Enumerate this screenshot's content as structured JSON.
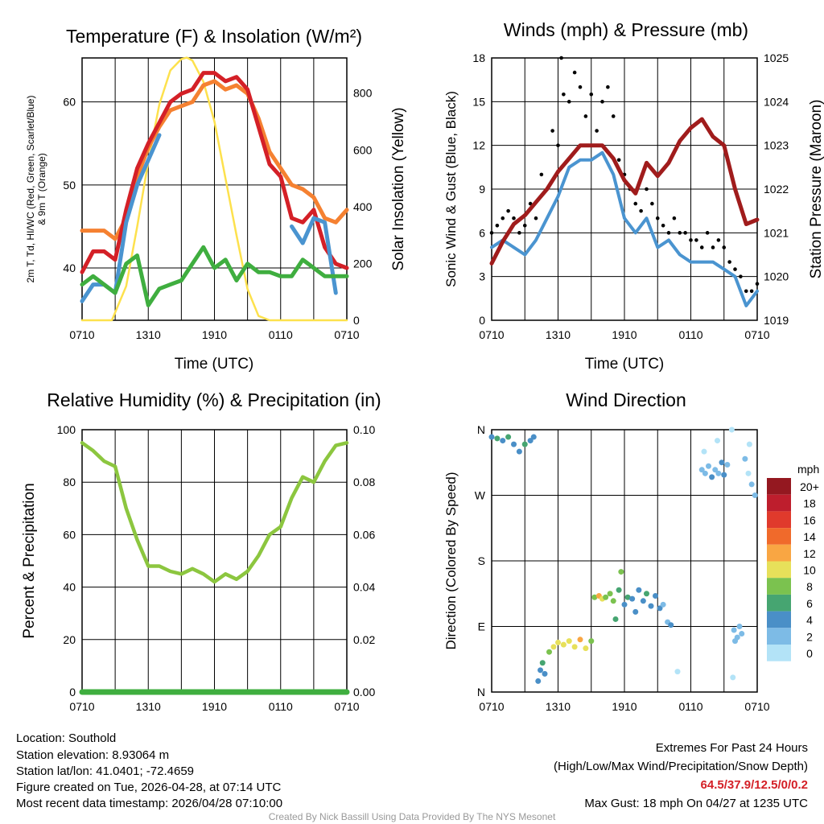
{
  "colors": {
    "red": "#d42027",
    "orange": "#f58131",
    "blue": "#4a94d0",
    "green": "#3fae3f",
    "yellow": "#fde14d",
    "maroon": "#a01c1c",
    "rh": "#8cc63f",
    "precip": "#3fae3f"
  },
  "x_tick_labels": [
    "0710",
    "1310",
    "1910",
    "0110",
    "0710"
  ],
  "chart_data": [
    {
      "type": "line",
      "title": "Temperature (F) & Insolation (W/m²)",
      "xlabel": "Time (UTC)",
      "ylabel_line1": "2m T, Td, HI/WC (Red, Green, Scarlet/Blue)",
      "ylabel_line2": "& 9m T (Orange)",
      "ylabel_right": "Solar Insolation (Yellow)",
      "xlim_hours": [
        0,
        24
      ],
      "ylim": [
        33.7,
        65.3
      ],
      "ylim_right": [
        0,
        924
      ],
      "yticks": [
        40,
        50,
        60
      ],
      "yticks_right": [
        0,
        200,
        400,
        600,
        800
      ],
      "series": [
        {
          "name": "9m T",
          "color": "orange",
          "values": [
            44.5,
            44.5,
            44.5,
            43.5,
            46,
            51,
            54.5,
            57,
            59,
            59.5,
            60,
            62,
            62.5,
            61.5,
            62,
            61,
            58,
            54,
            52,
            50,
            49.5,
            48.5,
            46,
            45.5,
            47
          ]
        },
        {
          "name": "2m T",
          "color": "red",
          "values": [
            39.5,
            42,
            42,
            41,
            47,
            52,
            55,
            57.5,
            60,
            61,
            61.5,
            63.5,
            63.5,
            62.5,
            63,
            61.5,
            57,
            52.5,
            51,
            46,
            45.5,
            47,
            42.5,
            40.5,
            40
          ]
        },
        {
          "name": "HI/WC",
          "color": "blue",
          "values": [
            36,
            38,
            38,
            37,
            45.5,
            50,
            53,
            56,
            null,
            null,
            null,
            null,
            null,
            null,
            null,
            null,
            null,
            null,
            null,
            45,
            43,
            46,
            45.5,
            37,
            null
          ]
        },
        {
          "name": "Td",
          "color": "green",
          "values": [
            38,
            39,
            38,
            37,
            40.5,
            41.5,
            35.5,
            37.5,
            38,
            38.5,
            40.5,
            42.5,
            40,
            41,
            38.5,
            40.5,
            39.5,
            39.5,
            39,
            39,
            41,
            40,
            39,
            39,
            39
          ]
        }
      ],
      "insolation": {
        "hours": [
          0,
          2.7,
          4,
          5,
          6,
          7,
          8,
          9,
          9.5,
          10,
          11,
          12,
          13,
          14,
          15,
          16,
          17,
          24
        ],
        "values": [
          0,
          0,
          120,
          330,
          560,
          760,
          880,
          920,
          925,
          915,
          840,
          700,
          500,
          300,
          110,
          15,
          0,
          0
        ]
      }
    },
    {
      "type": "line",
      "title": "Winds (mph) & Pressure (mb)",
      "xlabel": "Time (UTC)",
      "ylabel": "Sonic Wind & Gust (Blue, Black)",
      "ylabel_right": "Station Pressure (Maroon)",
      "ylim": [
        0,
        18
      ],
      "ylim_right": [
        1019,
        1025
      ],
      "yticks": [
        0,
        3,
        6,
        9,
        12,
        15,
        18
      ],
      "yticks_right": [
        1019,
        1020,
        1021,
        1022,
        1023,
        1024,
        1025
      ],
      "wind": [
        5,
        5.5,
        5,
        4.5,
        5.5,
        7,
        8.5,
        10.5,
        11,
        11,
        11.5,
        10,
        7,
        6,
        7,
        5,
        5.5,
        4.5,
        4,
        4,
        4,
        3.5,
        3,
        1,
        2
      ],
      "gust": [
        6,
        7,
        7,
        6.5,
        7,
        9,
        12,
        15,
        16,
        15.5,
        15,
        14,
        10,
        8,
        9,
        7,
        6,
        6,
        5.5,
        5,
        5,
        5,
        3.5,
        2,
        2.5
      ],
      "gust_extra": [
        [
          0.5,
          6.5
        ],
        [
          1.5,
          7.5
        ],
        [
          2.5,
          6
        ],
        [
          3.5,
          8
        ],
        [
          4.5,
          10
        ],
        [
          5.5,
          13
        ],
        [
          6.5,
          15.5
        ],
        [
          7.5,
          17
        ],
        [
          8.5,
          14
        ],
        [
          9.5,
          13
        ],
        [
          10.5,
          16
        ],
        [
          11.5,
          11
        ],
        [
          12.5,
          9
        ],
        [
          13.5,
          7.5
        ],
        [
          14.5,
          8
        ],
        [
          15.5,
          6.5
        ],
        [
          16.5,
          7
        ],
        [
          17.5,
          6
        ],
        [
          18.5,
          5.5
        ],
        [
          19.5,
          6
        ],
        [
          20.5,
          5.5
        ],
        [
          21.5,
          4
        ],
        [
          22.5,
          3
        ],
        [
          23.5,
          2
        ],
        [
          6.3,
          18
        ]
      ],
      "pressure": [
        1020.3,
        1020.8,
        1021.2,
        1021.4,
        1021.7,
        1022,
        1022.4,
        1022.7,
        1023,
        1023,
        1023,
        1022.7,
        1022.2,
        1021.9,
        1022.6,
        1022.3,
        1022.6,
        1023.1,
        1023.4,
        1023.6,
        1023.2,
        1023,
        1022,
        1021.2,
        1021.3
      ]
    },
    {
      "type": "line",
      "title": "Relative Humidity (%) & Precipitation (in)",
      "ylabel": "Percent & Precipitation",
      "ylim": [
        0,
        100
      ],
      "ylim_right": [
        0,
        0.1
      ],
      "yticks": [
        0,
        20,
        40,
        60,
        80,
        100
      ],
      "yticks_right": [
        "0.00",
        "0.02",
        "0.04",
        "0.06",
        "0.08",
        "0.10"
      ],
      "rh": [
        95,
        92,
        88,
        86,
        70,
        58,
        48,
        48,
        46,
        45,
        47,
        45,
        42,
        45,
        43,
        46,
        52,
        60,
        63,
        74,
        82,
        80,
        88,
        94,
        95
      ],
      "precip": [
        0,
        0
      ]
    },
    {
      "type": "scatter",
      "title": "Wind Direction",
      "ylabel": "Direction (Colored By Speed)",
      "yticks": [
        "N",
        "E",
        "S",
        "W",
        "N"
      ],
      "legend_title": "mph",
      "legend": [
        {
          "label": "20+",
          "color": "#941820"
        },
        {
          "label": "18",
          "color": "#be1e2d"
        },
        {
          "label": "16",
          "color": "#e03a2c"
        },
        {
          "label": "14",
          "color": "#f06a2b"
        },
        {
          "label": "12",
          "color": "#f9a643"
        },
        {
          "label": "10",
          "color": "#e7e05a"
        },
        {
          "label": "8",
          "color": "#7bc24f"
        },
        {
          "label": "6",
          "color": "#46a571"
        },
        {
          "label": "4",
          "color": "#4a8fc7"
        },
        {
          "label": "2",
          "color": "#7dbbe6"
        },
        {
          "label": "0",
          "color": "#b3e3f7"
        }
      ],
      "points": [
        [
          0,
          350,
          5
        ],
        [
          0.5,
          348,
          6
        ],
        [
          1,
          345,
          5
        ],
        [
          1.5,
          350,
          6
        ],
        [
          2,
          340,
          5
        ],
        [
          2.5,
          330,
          5
        ],
        [
          3,
          340,
          6
        ],
        [
          3.5,
          345,
          4
        ],
        [
          3.8,
          350,
          5
        ],
        [
          4.2,
          15,
          5
        ],
        [
          4.4,
          30,
          4
        ],
        [
          4.6,
          40,
          6
        ],
        [
          4.8,
          25,
          5
        ],
        [
          5.2,
          55,
          9
        ],
        [
          5.6,
          62,
          10
        ],
        [
          6,
          68,
          11
        ],
        [
          6.5,
          65,
          10
        ],
        [
          7,
          70,
          11
        ],
        [
          7.5,
          62,
          10
        ],
        [
          8,
          72,
          12
        ],
        [
          8.5,
          60,
          11
        ],
        [
          9,
          70,
          9
        ],
        [
          9.3,
          130,
          9
        ],
        [
          9.7,
          132,
          12
        ],
        [
          10,
          128,
          11
        ],
        [
          10.3,
          130,
          8
        ],
        [
          10.7,
          135,
          9
        ],
        [
          11,
          125,
          8
        ],
        [
          11.5,
          140,
          7
        ],
        [
          11.7,
          165,
          8
        ],
        [
          11.2,
          100,
          6
        ],
        [
          12,
          120,
          4
        ],
        [
          12.3,
          130,
          6
        ],
        [
          12.7,
          128,
          5
        ],
        [
          13,
          110,
          4
        ],
        [
          13.3,
          140,
          5
        ],
        [
          13.7,
          125,
          4
        ],
        [
          14,
          135,
          6
        ],
        [
          14.4,
          118,
          4
        ],
        [
          14.8,
          132,
          5
        ],
        [
          15.2,
          115,
          4
        ],
        [
          15.5,
          120,
          3
        ],
        [
          15.9,
          96,
          3
        ],
        [
          16.2,
          92,
          4
        ],
        [
          16.8,
          28,
          1
        ],
        [
          19,
          305,
          3
        ],
        [
          19.3,
          300,
          2
        ],
        [
          19.6,
          310,
          3
        ],
        [
          19.9,
          295,
          4
        ],
        [
          20.2,
          305,
          2
        ],
        [
          20.5,
          300,
          3
        ],
        [
          20.8,
          315,
          4
        ],
        [
          21,
          298,
          4
        ],
        [
          21.3,
          312,
          3
        ],
        [
          19.2,
          330,
          1
        ],
        [
          20.4,
          345,
          1
        ],
        [
          21.9,
          85,
          3
        ],
        [
          22,
          70,
          2
        ],
        [
          22.2,
          75,
          3
        ],
        [
          22.4,
          90,
          3
        ],
        [
          22.6,
          80,
          2
        ],
        [
          21.8,
          20,
          1
        ],
        [
          21.7,
          360,
          1
        ],
        [
          22.9,
          320,
          2
        ],
        [
          23.2,
          300,
          1
        ],
        [
          23.5,
          285,
          2
        ],
        [
          23.8,
          270,
          3
        ],
        [
          23.3,
          340,
          1
        ]
      ]
    }
  ],
  "footer": {
    "location": "Location: Southold",
    "elevation": "Station elevation: 8.93064 m",
    "latlon": "Station lat/lon: 41.0401; -72.4659",
    "created": "Figure created on Tue, 2026-04-28, at 07:14 UTC",
    "recent": "Most recent data timestamp: 2026/04/28 07:10:00",
    "extremes_title": "Extremes For Past 24 Hours",
    "extremes_sub": "(High/Low/Max Wind/Precipitation/Snow Depth)",
    "extremes_values": "64.5/37.9/12.5/0/0.2",
    "max_gust": "Max Gust: 18 mph On 04/27 at 1235 UTC",
    "credit": "Created By Nick Bassill Using Data Provided By The NYS Mesonet"
  }
}
